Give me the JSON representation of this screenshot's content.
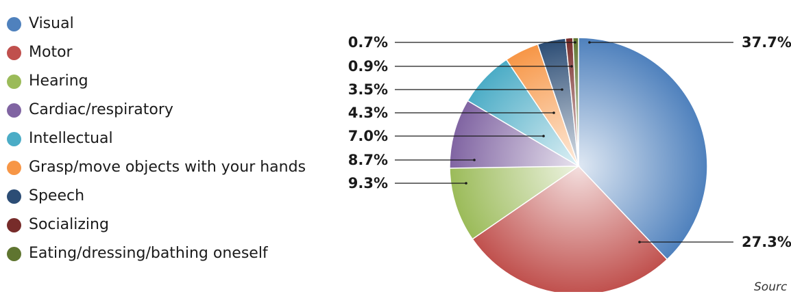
{
  "chart_data": {
    "type": "pie",
    "categories": [
      "Visual",
      "Motor",
      "Hearing",
      "Cardiac/respiratory",
      "Intellectual",
      "Grasp/move objects with your hands",
      "Speech",
      "Socializing",
      "Eating/dressing/bathing oneself"
    ],
    "values": [
      37.7,
      27.3,
      9.3,
      8.7,
      7.0,
      4.3,
      3.5,
      0.9,
      0.7
    ],
    "labels": [
      "37.7%",
      "27.3%",
      "9.3%",
      "8.7%",
      "7.0%",
      "4.3%",
      "3.5%",
      "0.9%",
      "0.7%"
    ],
    "colors": [
      "#4f81bd",
      "#c0504d",
      "#9bbb59",
      "#8064a2",
      "#4bacc6",
      "#f79646",
      "#2c4d75",
      "#772c2a",
      "#5f7530"
    ],
    "legend_position": "left",
    "start_angle": "12 o'clock",
    "direction": "clockwise"
  },
  "footer": {
    "source_text": "Sourc"
  }
}
